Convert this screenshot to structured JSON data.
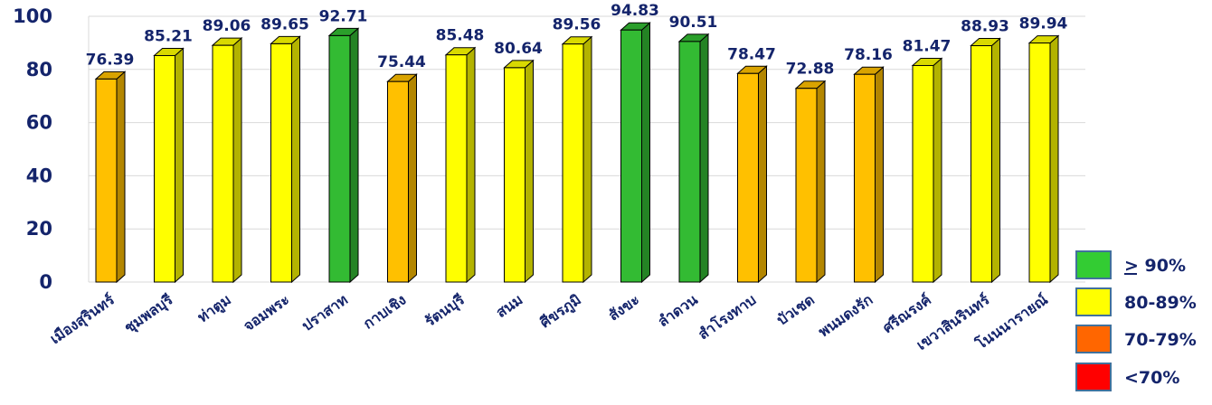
{
  "chart_data": {
    "type": "bar",
    "categories": [
      "เมืองสุรินทร์",
      "ชุมพลบุรี",
      "ท่าตูม",
      "จอมพระ",
      "ปราสาท",
      "กาบเชิง",
      "รัตนบุรี",
      "สนม",
      "ศีขรภูมิ",
      "สังขะ",
      "ลำดวน",
      "สำโรงทาบ",
      "บัวเชด",
      "พนมดงรัก",
      "ศรีณรงค์",
      "เขวาสินรินทร์",
      "โนนนารายณ์"
    ],
    "values": [
      76.39,
      85.21,
      89.06,
      89.65,
      92.71,
      75.44,
      85.48,
      80.64,
      89.56,
      94.83,
      90.51,
      78.47,
      72.88,
      78.16,
      81.47,
      88.93,
      89.94
    ],
    "value_labels": [
      "76.39",
      "85.21",
      "89.06",
      "89.65",
      "92.71",
      "75.44",
      "85.48",
      "80.64",
      "89.56",
      "94.83",
      "90.51",
      "78.47",
      "72.88",
      "78.16",
      "81.47",
      "88.93",
      "89.94"
    ],
    "ylim": [
      0,
      100
    ],
    "yticks": [
      "0",
      "20",
      "40",
      "60",
      "80",
      "100"
    ],
    "grid": true,
    "legend_position": "bottom-right",
    "legend": [
      {
        "label": "> 90%",
        "color": "#33cc33"
      },
      {
        "label": "80-89%",
        "color": "#ffff00"
      },
      {
        "label": "70-79%",
        "color": "#ff6600"
      },
      {
        "label": "<70%",
        "color": "#ff0000"
      }
    ],
    "bar_colors": {
      "green": "#33bb33",
      "yellow": "#ffff00",
      "orange": "#ffc000"
    }
  }
}
